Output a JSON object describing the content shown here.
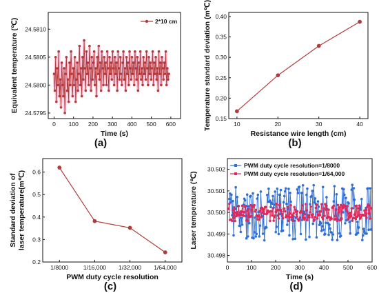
{
  "chart_data": [
    {
      "id": "a",
      "type": "line",
      "panel_label": "(a)",
      "xlabel": "Time (s)",
      "ylabel": "Equivalent temperature (℃)",
      "xlim": [
        -30,
        650
      ],
      "ylim": [
        24.5794,
        24.5813
      ],
      "xticks": [
        0,
        100,
        200,
        300,
        400,
        500,
        600
      ],
      "yticks": [
        24.5795,
        24.58,
        24.5805,
        24.581
      ],
      "ytick_labels": [
        "24.5795",
        "24.5800",
        "24.5805",
        "24.5810"
      ],
      "legend_position": "top-right",
      "series": [
        {
          "name": "2*10 cm",
          "color": "#b23a3a",
          "glow": "#ff5fa0",
          "x_start": 0,
          "x_end": 590,
          "points": 150,
          "center": 24.5802,
          "amplitude": 0.00043,
          "values": [
            24.5802,
            24.5799,
            24.5805,
            24.5797,
            24.5803,
            24.58,
            24.5806,
            24.5798,
            24.5801,
            24.5796,
            24.5804,
            24.58,
            24.5798,
            24.5803,
            24.5795,
            24.5802,
            24.5805,
            24.5799,
            24.5801,
            24.5797,
            24.5804,
            24.58,
            24.5806,
            24.5802,
            24.5798,
            24.5803,
            24.58,
            24.5805,
            24.5797,
            24.5801,
            24.5804,
            24.5799,
            24.5802,
            24.5807,
            24.58,
            24.5803,
            24.5798,
            24.5805,
            24.5801,
            24.5808,
            24.5803,
            24.5799,
            24.5806,
            24.5802,
            24.5804,
            24.58,
            24.5807,
            24.5803,
            24.5799,
            24.5805,
            24.5801,
            24.5804,
            24.5806,
            24.58,
            24.5803,
            24.5798,
            24.5805,
            24.5802,
            24.5807,
            24.5801,
            24.5804,
            24.5799,
            24.5806,
            24.5803,
            24.58,
            24.5805,
            24.5802,
            24.5804,
            24.58,
            24.5806,
            24.5803,
            24.5799,
            24.5805,
            24.5802,
            24.5804,
            24.5801,
            24.5806,
            24.5803,
            24.58,
            24.5805,
            24.5802,
            24.5804,
            24.5799,
            24.5806,
            24.5803,
            24.5801,
            24.5805,
            24.5802,
            24.58,
            24.5804,
            24.5806,
            24.5801,
            24.5803,
            24.5799,
            24.5805,
            24.5802,
            24.5804,
            24.58,
            24.5806,
            24.5803,
            24.5801,
            24.5805,
            24.5802,
            24.5804,
            24.58,
            24.5806,
            24.5803,
            24.5801,
            24.5805,
            24.5799,
            24.5804,
            24.5802,
            24.5806,
            24.5801,
            24.5803,
            24.58,
            24.5805,
            24.5802,
            24.5804,
            24.5801,
            24.5806,
            24.5803,
            24.58,
            24.5805,
            24.5802,
            24.5804,
            24.5801,
            24.5803,
            24.5806,
            24.58,
            24.5804,
            24.5802,
            24.5805,
            24.5801,
            24.5803,
            24.5799,
            24.5806,
            24.5802,
            24.5804,
            24.58,
            24.5805,
            24.5803,
            24.5801,
            24.5804,
            24.5802,
            24.5806,
            24.58,
            24.5803,
            24.5801,
            24.5802
          ]
        }
      ]
    },
    {
      "id": "b",
      "type": "line",
      "panel_label": "(b)",
      "xlabel": "Resistance wire length (cm)",
      "ylabel": "Temperature standard deviation (m℃)",
      "xlim": [
        8,
        42
      ],
      "ylim": [
        0.15,
        0.41
      ],
      "xticks": [
        10,
        20,
        30,
        40
      ],
      "yticks": [
        0.15,
        0.2,
        0.25,
        0.3,
        0.35,
        0.4
      ],
      "ytick_labels": [
        "0.15",
        "0.20",
        "0.25",
        "0.30",
        "0.35",
        "0.40"
      ],
      "series": [
        {
          "color": "#b23a3a",
          "x": [
            10,
            20,
            30,
            40
          ],
          "values": [
            0.168,
            0.256,
            0.328,
            0.387
          ]
        }
      ]
    },
    {
      "id": "c",
      "type": "line",
      "panel_label": "(c)",
      "xlabel": "PWM duty cycle resolution",
      "ylabel": "Standard deviation of laser temperature(m℃)",
      "categories": [
        "1/8000",
        "1/16,000",
        "1/32,000",
        "1/64,000"
      ],
      "ylim": [
        0.2,
        0.66
      ],
      "yticks": [
        0.2,
        0.3,
        0.4,
        0.5,
        0.6
      ],
      "ytick_labels": [
        "0.2",
        "0.3",
        "0.4",
        "0.5",
        "0.6"
      ],
      "series": [
        {
          "color": "#b23a3a",
          "values": [
            0.62,
            0.382,
            0.352,
            0.243
          ]
        }
      ]
    },
    {
      "id": "d",
      "type": "line",
      "panel_label": "(d)",
      "xlabel": "Time (s)",
      "ylabel": "Laser temperature (℃)",
      "xlim": [
        0,
        600
      ],
      "ylim": [
        30.4977,
        30.5025
      ],
      "xticks": [
        0,
        100,
        200,
        300,
        400,
        500,
        600
      ],
      "yticks": [
        30.498,
        30.499,
        30.5,
        30.501,
        30.502
      ],
      "ytick_labels": [
        "30.498",
        "30.499",
        "30.500",
        "30.501",
        "30.502"
      ],
      "legend_position": "top-left",
      "series": [
        {
          "name": "PWM duty cycle resolution=1/8000",
          "color": "#2f6fd6",
          "x_start": 5,
          "x_end": 595,
          "points": 200,
          "center": 30.5,
          "amplitude": 0.0013
        },
        {
          "name": "PWM duty cycle resolution=1/64,000",
          "color": "#e0285a",
          "x_start": 5,
          "x_end": 595,
          "points": 200,
          "center": 30.5,
          "amplitude": 0.0004
        }
      ]
    }
  ]
}
